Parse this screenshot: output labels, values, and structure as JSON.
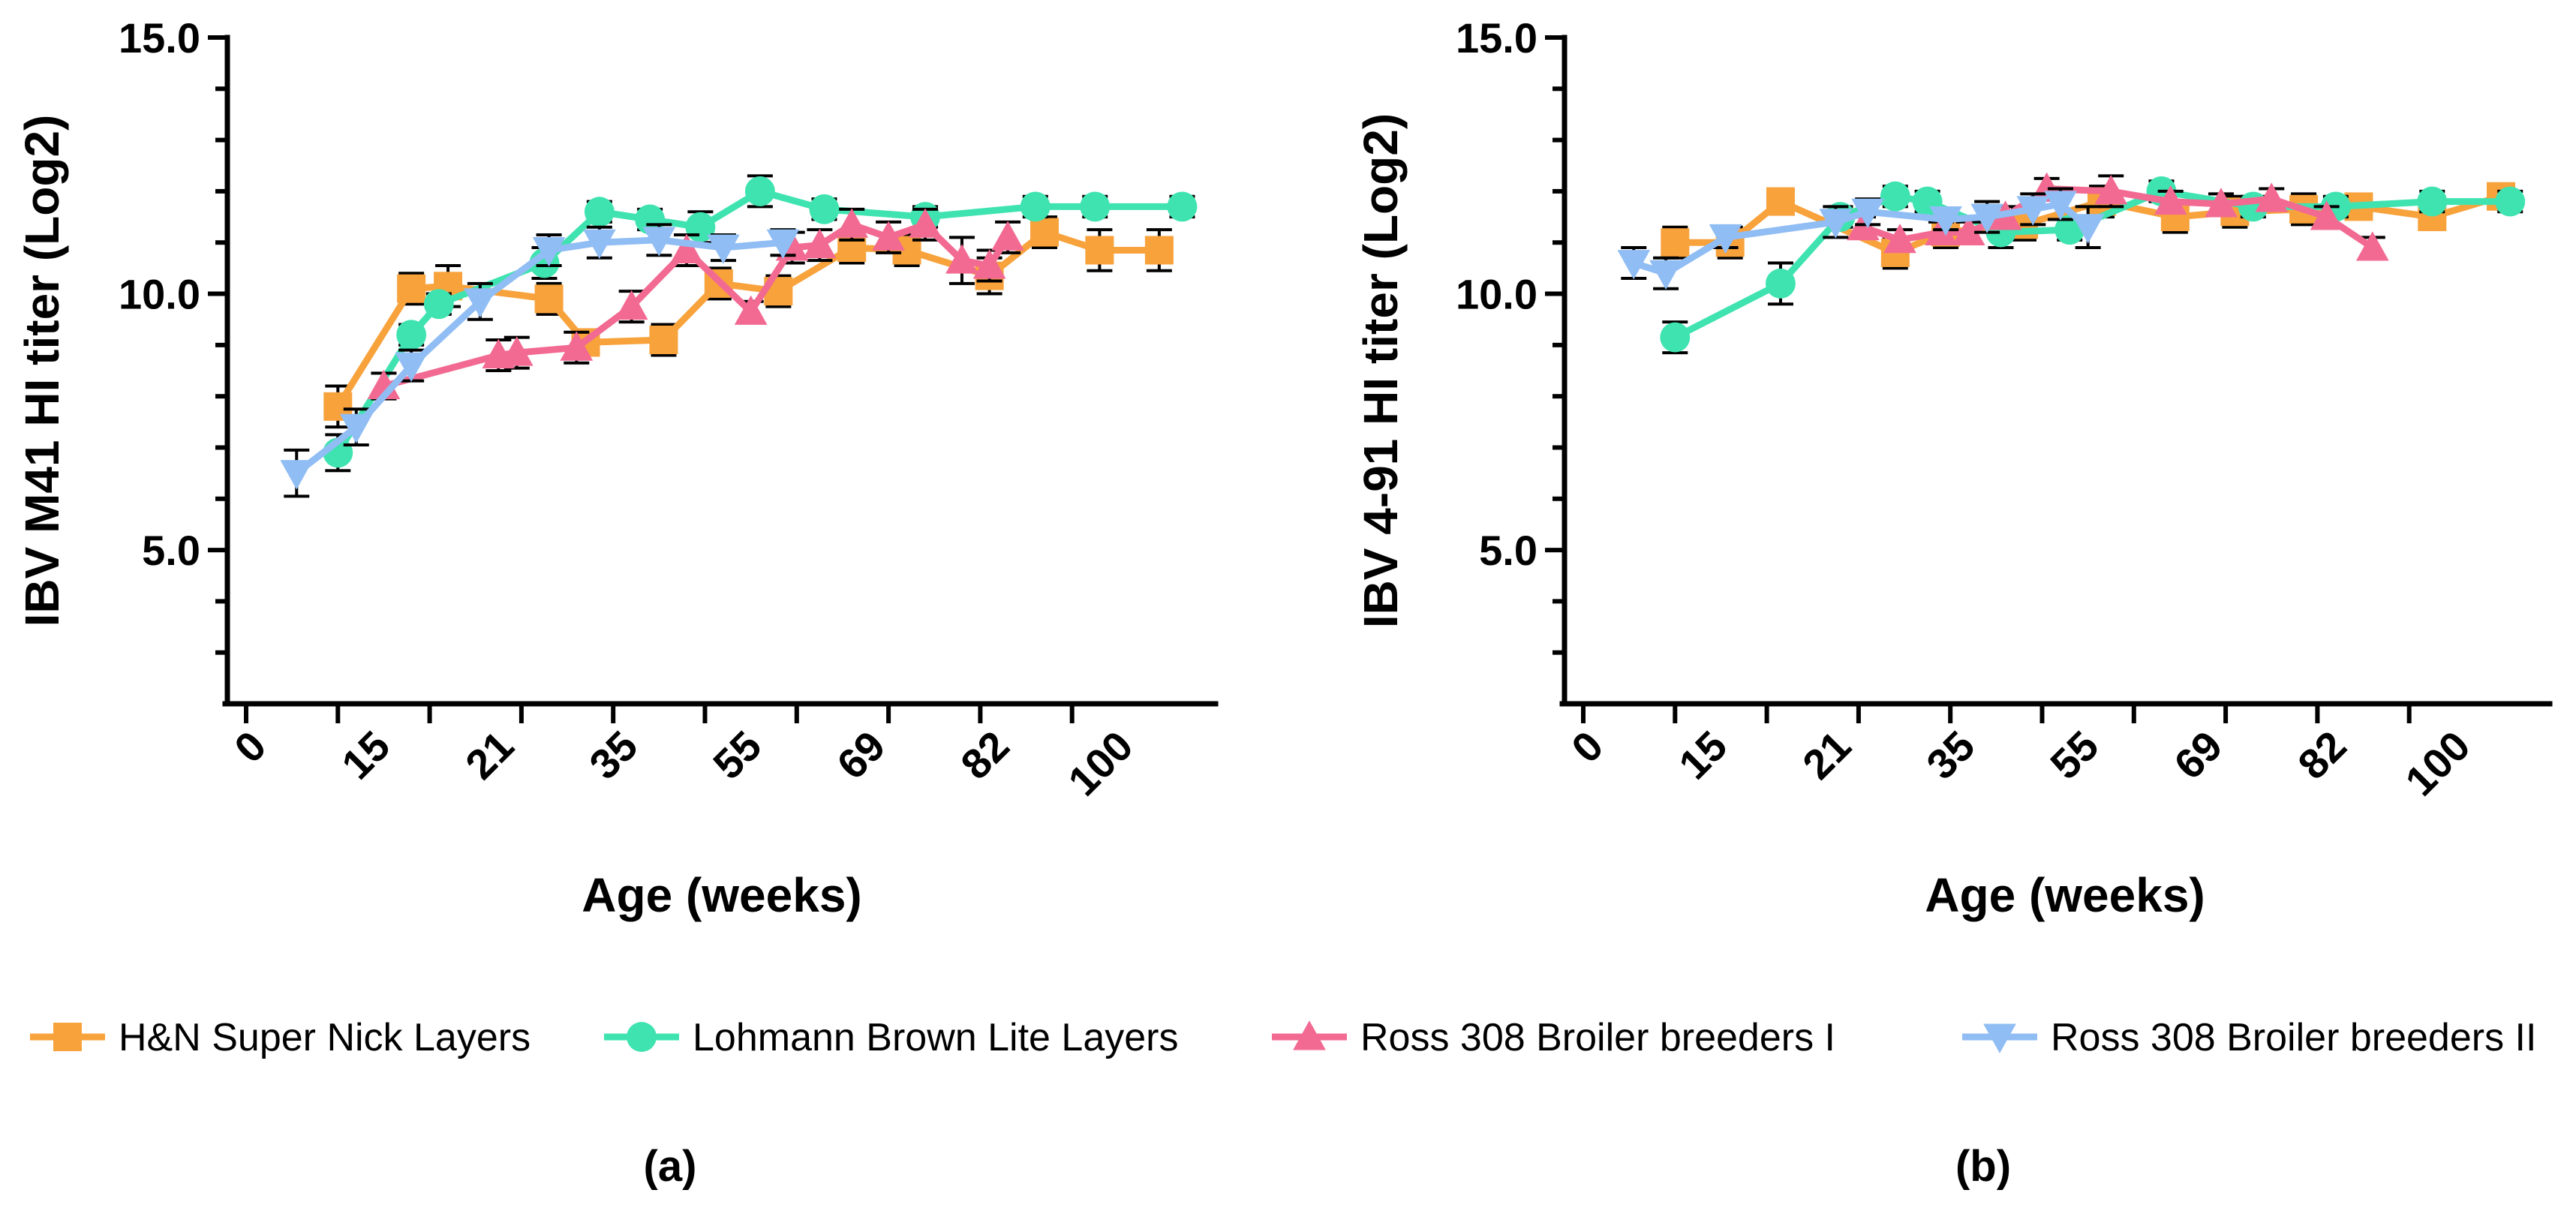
{
  "chart_data": [
    {
      "type": "line",
      "panel_label": "(a)",
      "xlabel": "Age (weeks)",
      "ylabel": "IBV M41 HI titer (Log2)",
      "ylim": [
        2.0,
        15.0
      ],
      "yticks": [
        "5.0",
        "10.0",
        "15.0"
      ],
      "ytick_values": [
        5,
        10,
        15
      ],
      "xticks": [
        "0",
        "15",
        "21",
        "35",
        "55",
        "69",
        "82",
        "100"
      ],
      "series": [
        {
          "name": "H&N Super Nick Layers",
          "color": "#F8A23C",
          "marker": "square",
          "x": [
            1,
            1.8,
            2.2,
            3.3,
            3.7,
            4.55,
            5.15,
            5.8,
            6.6,
            7.2,
            8.1,
            8.7,
            9.3,
            9.95
          ],
          "y": [
            7.8,
            10.1,
            10.15,
            9.9,
            9.05,
            9.1,
            10.2,
            10.05,
            10.9,
            10.85,
            10.35,
            11.2,
            10.85,
            10.85
          ],
          "err": [
            0.4,
            0.3,
            0.4,
            0.3,
            0.2,
            0.3,
            0.3,
            0.3,
            0.3,
            0.3,
            0.35,
            0.3,
            0.4,
            0.4
          ]
        },
        {
          "name": "Lohmann Brown Lite Layers",
          "color": "#3FE3B0",
          "marker": "circle",
          "x": [
            1,
            1.8,
            2.1,
            3.25,
            3.85,
            4.4,
            4.95,
            5.6,
            6.3,
            7.4,
            8.6,
            9.25,
            10.2
          ],
          "y": [
            6.9,
            9.2,
            9.8,
            10.6,
            11.6,
            11.45,
            11.3,
            12.0,
            11.65,
            11.5,
            11.7,
            11.7,
            11.7
          ],
          "err": [
            0.35,
            0.2,
            0.2,
            0.3,
            0.2,
            0.2,
            0.3,
            0.3,
            0.2,
            0.2,
            0.2,
            0.2,
            0.2
          ]
        },
        {
          "name": "Ross 308 Broiler breeders I",
          "color": "#F26A92",
          "marker": "triangle-up",
          "x": [
            1.5,
            2.75,
            2.95,
            3.6,
            4.2,
            4.8,
            5.5,
            5.95,
            6.25,
            6.6,
            7.0,
            7.4,
            7.8,
            8.1,
            8.3
          ],
          "y": [
            8.2,
            8.8,
            8.85,
            8.95,
            9.75,
            10.85,
            9.65,
            10.9,
            10.95,
            11.35,
            11.1,
            11.35,
            10.65,
            10.55,
            11.1
          ],
          "err": [
            0.25,
            0.3,
            0.3,
            0.3,
            0.3,
            0.3,
            0.2,
            0.3,
            0.3,
            0.3,
            0.3,
            0.3,
            0.45,
            0.3,
            0.3
          ]
        },
        {
          "name": "Ross 308 Broiler breeders II",
          "color": "#90BDF4",
          "marker": "triangle-down",
          "x": [
            0.55,
            1.2,
            1.8,
            2.55,
            3.3,
            3.85,
            4.5,
            5.2,
            5.85
          ],
          "y": [
            6.5,
            7.4,
            8.6,
            9.85,
            10.85,
            11.0,
            11.05,
            10.9,
            11.0
          ],
          "err": [
            0.45,
            0.35,
            0.3,
            0.35,
            0.3,
            0.3,
            0.3,
            0.25,
            0.25
          ]
        }
      ]
    },
    {
      "type": "line",
      "panel_label": "(b)",
      "xlabel": "Age (weeks)",
      "ylabel": "IBV 4-91 HI titer (Log2)",
      "ylim": [
        2.0,
        15.0
      ],
      "yticks": [
        "5.0",
        "10.0",
        "15.0"
      ],
      "ytick_values": [
        5,
        10,
        15
      ],
      "xticks": [
        "0",
        "15",
        "21",
        "35",
        "55",
        "69",
        "82",
        "100"
      ],
      "series": [
        {
          "name": "H&N Super Nick Layers",
          "color": "#F8A23C",
          "marker": "square",
          "x": [
            1,
            1.6,
            2.15,
            3.4,
            3.95,
            4.8,
            5.65,
            6.45,
            7.1,
            7.85,
            8.45,
            9.25,
            10.0
          ],
          "y": [
            11.0,
            11.0,
            11.8,
            10.8,
            11.2,
            11.35,
            11.8,
            11.5,
            11.6,
            11.65,
            11.7,
            11.5,
            11.9
          ],
          "err": [
            0.3,
            0.3,
            0.2,
            0.3,
            0.3,
            0.3,
            0.3,
            0.3,
            0.3,
            0.3,
            0.2,
            0.2,
            0.2
          ]
        },
        {
          "name": "Lohmann Brown Lite Layers",
          "color": "#3FE3B0",
          "marker": "circle",
          "x": [
            1,
            2.15,
            2.8,
            3.4,
            3.75,
            4.55,
            5.3,
            6.3,
            7.3,
            8.2,
            9.25,
            10.1
          ],
          "y": [
            9.15,
            10.2,
            11.5,
            11.9,
            11.8,
            11.2,
            11.25,
            12.0,
            11.7,
            11.7,
            11.8,
            11.8
          ],
          "err": [
            0.3,
            0.4,
            0.2,
            0.2,
            0.2,
            0.3,
            0.2,
            0.2,
            0.2,
            0.2,
            0.2,
            0.2
          ]
        },
        {
          "name": "Ross 308 Broiler breeders I",
          "color": "#F26A92",
          "marker": "triangle-up",
          "x": [
            3.05,
            3.45,
            3.9,
            4.2,
            4.6,
            5.05,
            5.75,
            6.4,
            6.95,
            7.5,
            8.1,
            8.6
          ],
          "y": [
            11.3,
            11.05,
            11.2,
            11.2,
            11.5,
            12.05,
            12.0,
            11.8,
            11.75,
            11.85,
            11.5,
            10.9
          ],
          "err": [
            0.2,
            0.2,
            0.2,
            0.2,
            0.2,
            0.2,
            0.3,
            0.2,
            0.2,
            0.2,
            0.2,
            0.2
          ]
        },
        {
          "name": "Ross 308 Broiler breeders II",
          "color": "#90BDF4",
          "marker": "triangle-down",
          "x": [
            0.55,
            0.9,
            1.55,
            2.75,
            3.1,
            3.95,
            4.4,
            4.9,
            5.2,
            5.5
          ],
          "y": [
            10.6,
            10.4,
            11.1,
            11.4,
            11.6,
            11.45,
            11.5,
            11.65,
            11.75,
            11.3
          ],
          "err": [
            0.3,
            0.3,
            0.2,
            0.3,
            0.25,
            0.2,
            0.3,
            0.3,
            0.3,
            0.4
          ]
        }
      ]
    }
  ],
  "legend": {
    "placement": "bottom",
    "items": [
      {
        "label": "H&N Super Nick Layers",
        "color": "#F8A23C",
        "marker": "square"
      },
      {
        "label": "Lohmann Brown Lite Layers",
        "color": "#3FE3B0",
        "marker": "circle"
      },
      {
        "label": "Ross 308 Broiler breeders I",
        "color": "#F26A92",
        "marker": "triangle-up"
      },
      {
        "label": "Ross 308 Broiler breeders II",
        "color": "#90BDF4",
        "marker": "triangle-down"
      }
    ]
  }
}
